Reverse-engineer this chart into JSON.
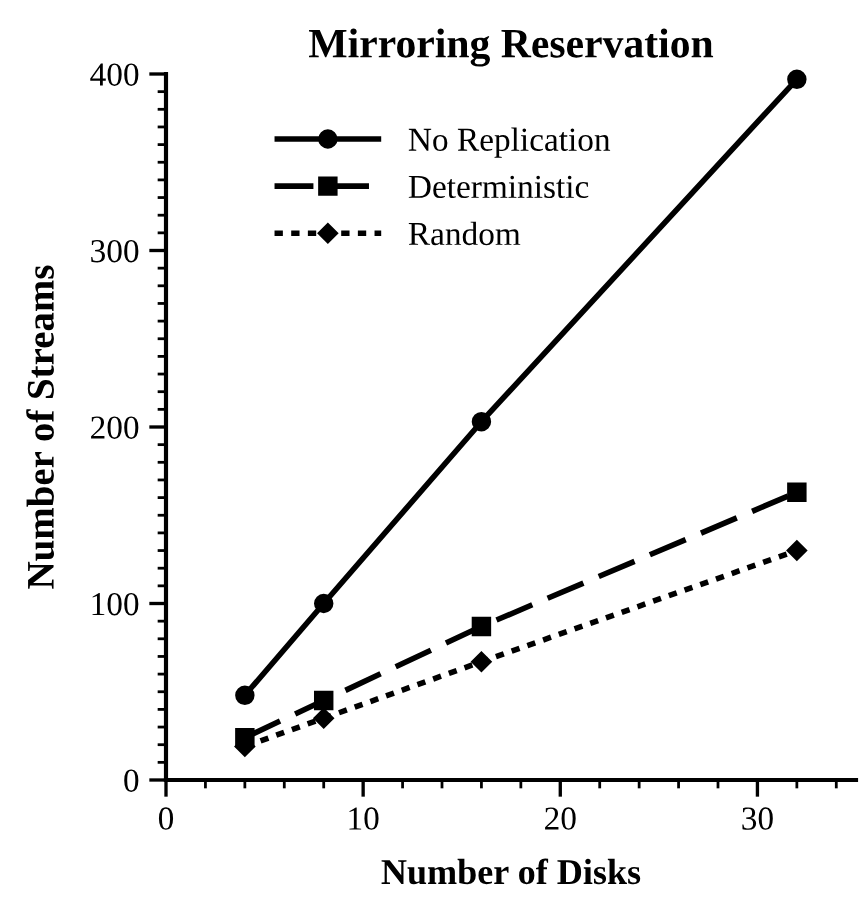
{
  "chart_data": {
    "type": "line",
    "title": "Mirroring Reservation",
    "xlabel": "Number of Disks",
    "ylabel": "Number of Streams",
    "x": [
      4,
      8,
      16,
      32
    ],
    "series": [
      {
        "name": "No Replication",
        "color": "#000000",
        "values": [
          48,
          100,
          203,
          397
        ],
        "marker": "circle",
        "line_style": "solid"
      },
      {
        "name": "Deterministic",
        "color": "#000000",
        "values": [
          24,
          45,
          87,
          163
        ],
        "marker": "square",
        "line_style": "dashed"
      },
      {
        "name": "Random",
        "color": "#000000",
        "values": [
          19,
          35,
          67,
          130
        ],
        "marker": "diamond",
        "line_style": "dotted"
      }
    ],
    "xlim": [
      0,
      35
    ],
    "xticks": [
      0,
      10,
      20,
      30
    ],
    "ylim": [
      0,
      400
    ],
    "yticks": [
      0,
      100,
      200,
      300,
      400
    ],
    "grid": false,
    "legend": "top left"
  }
}
